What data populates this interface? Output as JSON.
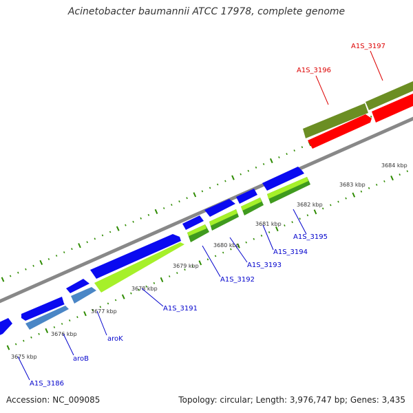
{
  "title": "Acinetobacter baumannii ATCC 17978, complete genome",
  "footer": {
    "accession": "Accession: NC_009085",
    "topology": "Topology: circular; Length: 3,976,747 bp; Genes: 3,435"
  },
  "colors": {
    "backbone": "#888888",
    "tick": "#2e8b00",
    "forward_label": "#0000cc",
    "reverse_label": "#dd0000",
    "cds_blue": "#0a0af0",
    "cds_steel": "#4a86c6",
    "cds_lime": "#a6f02a",
    "cds_green": "#3f9a1e",
    "cds_olive": "#6b8e23",
    "cds_red": "#ff0000"
  },
  "kbp_labels": [
    "3675 kbp",
    "3676 kbp",
    "3677 kbp",
    "3678 kbp",
    "3679 kbp",
    "3680 kbp",
    "3681 kbp",
    "3682 kbp",
    "3683 kbp",
    "3684 kbp"
  ],
  "gene_labels": [
    "A1S_3186",
    "aroB",
    "aroK",
    "A1S_3191",
    "A1S_3192",
    "A1S_3193",
    "A1S_3194",
    "A1S_3195",
    "A1S_3196",
    "A1S_3197"
  ]
}
